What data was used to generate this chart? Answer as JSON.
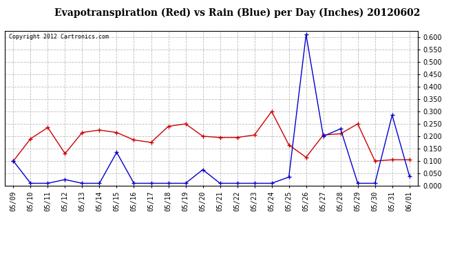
{
  "title": "Evapotranspiration (Red) vs Rain (Blue) per Day (Inches) 20120602",
  "copyright": "Copyright 2012 Cartronics.com",
  "x_labels": [
    "05/09",
    "05/10",
    "05/11",
    "05/12",
    "05/13",
    "05/14",
    "05/15",
    "05/16",
    "05/17",
    "05/18",
    "05/19",
    "05/20",
    "05/21",
    "05/22",
    "05/23",
    "05/24",
    "05/25",
    "05/26",
    "05/27",
    "05/28",
    "05/29",
    "05/30",
    "05/31",
    "06/01"
  ],
  "red_data": [
    0.1,
    0.19,
    0.235,
    0.13,
    0.215,
    0.225,
    0.215,
    0.185,
    0.175,
    0.24,
    0.25,
    0.2,
    0.195,
    0.195,
    0.205,
    0.3,
    0.165,
    0.115,
    0.205,
    0.21,
    0.25,
    0.1,
    0.105,
    0.105
  ],
  "blue_data": [
    0.1,
    0.01,
    0.01,
    0.025,
    0.01,
    0.01,
    0.135,
    0.01,
    0.01,
    0.01,
    0.01,
    0.065,
    0.01,
    0.01,
    0.01,
    0.01,
    0.035,
    0.61,
    0.2,
    0.23,
    0.01,
    0.01,
    0.285,
    0.04
  ],
  "ylim": [
    0.0,
    0.625
  ],
  "yticks": [
    0.0,
    0.05,
    0.1,
    0.15,
    0.2,
    0.25,
    0.3,
    0.35,
    0.4,
    0.45,
    0.5,
    0.55,
    0.6
  ],
  "red_color": "#cc0000",
  "blue_color": "#0000cc",
  "bg_color": "#ffffff",
  "grid_color": "#bbbbbb",
  "title_fontsize": 10,
  "copyright_fontsize": 6,
  "tick_fontsize": 7
}
